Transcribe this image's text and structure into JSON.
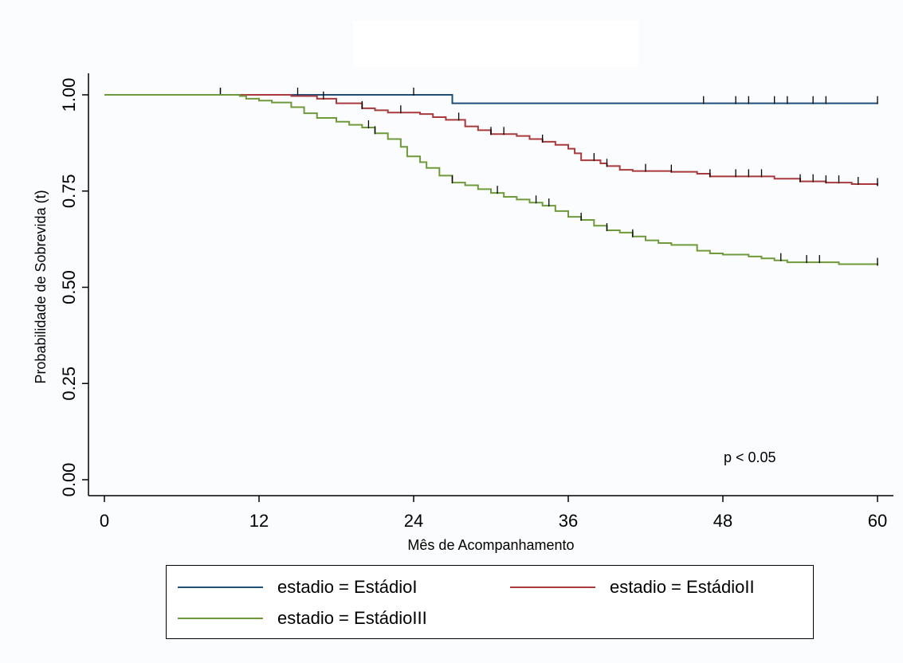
{
  "chart_data": {
    "type": "line",
    "xlabel": "Mês de Acompanhamento",
    "ylabel": "Probabilidade de Sobrevida (t)",
    "x_ticks": [
      0,
      12,
      24,
      36,
      48,
      60
    ],
    "x_tick_labels": [
      "0",
      "12",
      "24",
      "36",
      "48",
      "60"
    ],
    "y_ticks": [
      0,
      0.25,
      0.5,
      0.75,
      1
    ],
    "y_tick_labels": [
      "0.00",
      "0.25",
      "0.50",
      "0.75",
      "1.00"
    ],
    "xlim": [
      0,
      60
    ],
    "ylim": [
      0,
      1
    ],
    "grid": false,
    "legend_position": "bottom",
    "annotation": "p < 0.05",
    "series": [
      {
        "name": "estadio = EstádioI",
        "color": "#1f4e79",
        "steps": [
          [
            0,
            1.0
          ],
          [
            27,
            0.978
          ],
          [
            60,
            0.978
          ]
        ],
        "censors": [
          9,
          15,
          24,
          46.5,
          49,
          50,
          52,
          53,
          55,
          56,
          60
        ]
      },
      {
        "name": "estadio = EstádioII",
        "color": "#a83a3d",
        "steps": [
          [
            0,
            1.0
          ],
          [
            10,
            1.0
          ],
          [
            14.5,
            0.997
          ],
          [
            16.5,
            0.99
          ],
          [
            18,
            0.978
          ],
          [
            20,
            0.965
          ],
          [
            21,
            0.96
          ],
          [
            22,
            0.954
          ],
          [
            24.5,
            0.95
          ],
          [
            25.5,
            0.942
          ],
          [
            26.5,
            0.935
          ],
          [
            28,
            0.918
          ],
          [
            29,
            0.908
          ],
          [
            30,
            0.898
          ],
          [
            32,
            0.893
          ],
          [
            33,
            0.885
          ],
          [
            34,
            0.878
          ],
          [
            35,
            0.87
          ],
          [
            36,
            0.86
          ],
          [
            36.5,
            0.848
          ],
          [
            37,
            0.83
          ],
          [
            38.5,
            0.822
          ],
          [
            39,
            0.815
          ],
          [
            40,
            0.805
          ],
          [
            41,
            0.802
          ],
          [
            44,
            0.8
          ],
          [
            46,
            0.795
          ],
          [
            47,
            0.788
          ],
          [
            52,
            0.782
          ],
          [
            54,
            0.775
          ],
          [
            56,
            0.772
          ],
          [
            58,
            0.768
          ],
          [
            60,
            0.765
          ]
        ],
        "censors": [
          9,
          17,
          20,
          23,
          27.5,
          30,
          31,
          34,
          38,
          39,
          42,
          44,
          47,
          49,
          50,
          51,
          54,
          55,
          56,
          57,
          58.5,
          60
        ]
      },
      {
        "name": "estadio = EstádioIII",
        "color": "#6f9a3c",
        "steps": [
          [
            0,
            1.0
          ],
          [
            10.5,
            0.997
          ],
          [
            11,
            0.99
          ],
          [
            12,
            0.985
          ],
          [
            13,
            0.98
          ],
          [
            14.5,
            0.968
          ],
          [
            15.5,
            0.952
          ],
          [
            16.5,
            0.94
          ],
          [
            18,
            0.93
          ],
          [
            19,
            0.922
          ],
          [
            20,
            0.915
          ],
          [
            21,
            0.9
          ],
          [
            22,
            0.885
          ],
          [
            23,
            0.865
          ],
          [
            23.5,
            0.84
          ],
          [
            24.5,
            0.825
          ],
          [
            25,
            0.81
          ],
          [
            26,
            0.79
          ],
          [
            27,
            0.772
          ],
          [
            28,
            0.765
          ],
          [
            29,
            0.755
          ],
          [
            30,
            0.745
          ],
          [
            31,
            0.735
          ],
          [
            32,
            0.728
          ],
          [
            33,
            0.72
          ],
          [
            34,
            0.712
          ],
          [
            35,
            0.698
          ],
          [
            36,
            0.683
          ],
          [
            37,
            0.675
          ],
          [
            38,
            0.66
          ],
          [
            39,
            0.648
          ],
          [
            40,
            0.642
          ],
          [
            41,
            0.632
          ],
          [
            42,
            0.622
          ],
          [
            43,
            0.615
          ],
          [
            44,
            0.61
          ],
          [
            46,
            0.595
          ],
          [
            47,
            0.588
          ],
          [
            48,
            0.585
          ],
          [
            50,
            0.58
          ],
          [
            51,
            0.575
          ],
          [
            52,
            0.57
          ],
          [
            53,
            0.565
          ],
          [
            57,
            0.56
          ],
          [
            60,
            0.558
          ]
        ],
        "censors": [
          20.5,
          21,
          27,
          30.5,
          33.5,
          34.5,
          37,
          39,
          41,
          52.5,
          54.5,
          55.5,
          60
        ]
      }
    ]
  },
  "legend": {
    "items": [
      "estadio = EstádioI",
      "estadio = EstádioII",
      "estadio = EstádioIII"
    ]
  }
}
